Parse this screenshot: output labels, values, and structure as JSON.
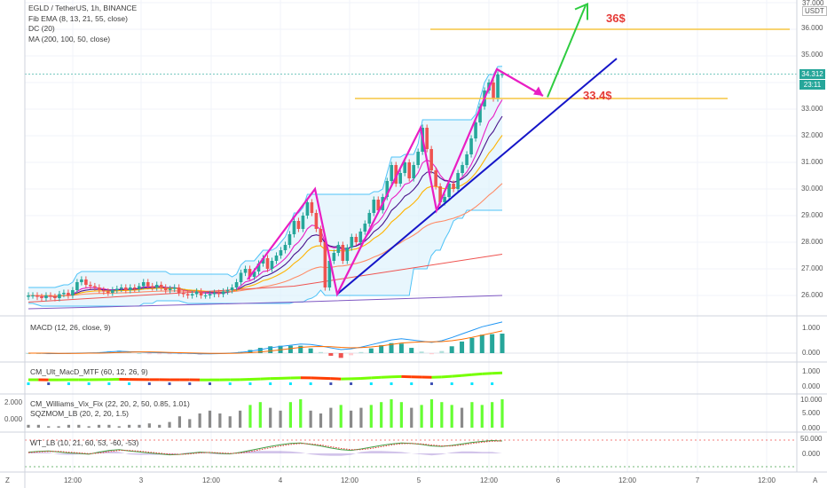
{
  "legend": {
    "symbol": "EGLD / TetherUS, 1h, BINANCE",
    "indicators": [
      "Fib EMA (8, 13, 21, 55, close)",
      "DC (20)",
      "MA (200, 100, 50, close)"
    ]
  },
  "panes": {
    "macd": "MACD (12, 26, close, 9)",
    "ult_macd": "CM_Ult_MacD_MTF (60, 12, 26, 9)",
    "vix_fix": "CM_Williams_Vix_Fix (22, 20, 2, 50, 0.85, 1.01)",
    "sqzmom": "SQZMOM_LB (20, 2, 20, 1.5)",
    "wt": "WT_LB (10, 21, 60, 53, -60, -53)"
  },
  "currency": "USDT",
  "price_axis_ticks": [
    "37.000",
    "36.000",
    "35.000",
    "33.000",
    "32.000",
    "31.000",
    "30.000",
    "29.000",
    "28.000",
    "27.000",
    "26.000"
  ],
  "current_price": "34.312",
  "countdown": "23:11",
  "macd_ticks": [
    "1.000",
    "0.000"
  ],
  "ult_ticks": [
    "1.000",
    "0.000"
  ],
  "vix_right_ticks": [
    "10.000",
    "5.000",
    "0.000"
  ],
  "vix_left_ticks": [
    "2.000",
    "0.000"
  ],
  "wt_ticks": [
    "50.000",
    "0.000"
  ],
  "x_ticks": [
    "12:00",
    "3",
    "12:00",
    "4",
    "12:00",
    "5",
    "12:00",
    "6",
    "12:00",
    "7",
    "12:00"
  ],
  "annotations": {
    "target_high": "36$",
    "target_support": "33.4$"
  },
  "corner_left": "Z",
  "corner_right": "A",
  "colors": {
    "up": "#26a69a",
    "down": "#ef5350",
    "pink": "#e91ec3",
    "trend": "#1515c8",
    "arrow_up": "#2ecc40",
    "target_line": "#f5c542"
  },
  "chart_data": {
    "type": "candlestick",
    "symbol": "EGLD / TetherUS",
    "interval": "1h",
    "x_ticks": [
      "12:00",
      "3",
      "12:00",
      "4",
      "12:00",
      "5",
      "12:00",
      "6",
      "12:00",
      "7",
      "12:00"
    ],
    "ylim": [
      25.6,
      37.0
    ],
    "close": [
      26.0,
      26.0,
      25.95,
      25.9,
      26.0,
      25.95,
      25.9,
      26.05,
      26.1,
      26.0,
      26.2,
      26.5,
      26.6,
      26.4,
      26.35,
      26.3,
      26.2,
      26.15,
      26.1,
      26.2,
      26.25,
      26.3,
      26.2,
      26.3,
      26.25,
      26.35,
      26.5,
      26.35,
      26.3,
      26.4,
      26.3,
      26.2,
      26.25,
      26.3,
      26.1,
      26.05,
      26.0,
      26.05,
      26.15,
      26.0,
      26.0,
      26.05,
      26.1,
      26.05,
      26.15,
      26.2,
      26.3,
      26.5,
      26.85,
      27.0,
      26.7,
      26.9,
      27.2,
      27.4,
      27.0,
      27.3,
      27.5,
      27.7,
      27.9,
      28.3,
      28.8,
      28.5,
      29.0,
      29.5,
      29.1,
      28.5,
      28.0,
      26.3,
      27.3,
      27.6,
      27.9,
      27.3,
      27.8,
      28.2,
      28.0,
      28.4,
      28.7,
      29.1,
      29.6,
      29.2,
      29.7,
      30.3,
      30.9,
      30.2,
      30.6,
      31.0,
      30.4,
      30.9,
      31.4,
      32.3,
      31.5,
      30.7,
      30.1,
      29.5,
      29.7,
      30.2,
      30.0,
      30.6,
      30.9,
      31.3,
      31.9,
      32.5,
      33.1,
      33.7,
      34.0,
      33.4,
      34.3,
      34.31
    ]
  },
  "sub_data": {
    "macd": [
      0.0,
      0.0,
      -0.02,
      -0.02,
      -0.01,
      0.0,
      0.01,
      0.02,
      0.05,
      0.08,
      0.06,
      0.05,
      0.03,
      0.02,
      0.01,
      0.0,
      -0.01,
      -0.03,
      -0.03,
      -0.02,
      0.0,
      0.03,
      0.08,
      0.15,
      0.22,
      0.28,
      0.33,
      0.38,
      0.36,
      0.3,
      0.22,
      0.15,
      0.18,
      0.25,
      0.35,
      0.45,
      0.55,
      0.6,
      0.55,
      0.5,
      0.45,
      0.52,
      0.65,
      0.8,
      0.95,
      1.1,
      1.2,
      1.3
    ],
    "macd_signal": [
      0.0,
      0.0,
      0.0,
      -0.01,
      -0.01,
      -0.01,
      0.0,
      0.0,
      0.01,
      0.03,
      0.04,
      0.05,
      0.05,
      0.04,
      0.03,
      0.02,
      0.01,
      0.0,
      -0.01,
      -0.01,
      -0.01,
      0.0,
      0.02,
      0.05,
      0.09,
      0.14,
      0.19,
      0.24,
      0.27,
      0.28,
      0.27,
      0.24,
      0.22,
      0.23,
      0.26,
      0.3,
      0.36,
      0.42,
      0.45,
      0.47,
      0.47,
      0.48,
      0.52,
      0.58,
      0.66,
      0.75,
      0.84,
      0.93
    ],
    "vix": [
      1,
      1,
      0.5,
      0.5,
      1,
      1,
      0.5,
      1,
      1,
      0.5,
      1,
      1,
      1.5,
      1,
      2,
      4,
      3,
      5,
      6,
      5,
      4,
      6,
      8,
      9,
      7,
      6,
      9,
      10,
      6,
      5,
      7,
      8,
      6,
      7,
      8,
      9,
      10,
      9,
      7,
      8,
      10,
      9,
      8,
      7,
      9,
      8,
      9,
      10
    ],
    "wt1": [
      5,
      8,
      10,
      6,
      2,
      0,
      -3,
      5,
      12,
      15,
      10,
      6,
      2,
      -2,
      -6,
      -4,
      0,
      5,
      3,
      0,
      -2,
      4,
      12,
      20,
      28,
      35,
      40,
      42,
      36,
      30,
      22,
      15,
      12,
      18,
      25,
      32,
      38,
      42,
      40,
      36,
      30,
      28,
      32,
      38,
      44,
      48,
      52,
      50
    ],
    "wt2": [
      3,
      6,
      8,
      8,
      5,
      2,
      -1,
      1,
      7,
      12,
      12,
      9,
      5,
      1,
      -3,
      -4,
      -2,
      2,
      4,
      2,
      0,
      1,
      7,
      15,
      23,
      30,
      36,
      40,
      38,
      34,
      27,
      20,
      15,
      15,
      20,
      27,
      34,
      39,
      40,
      38,
      34,
      30,
      30,
      34,
      40,
      45,
      49,
      50
    ]
  }
}
